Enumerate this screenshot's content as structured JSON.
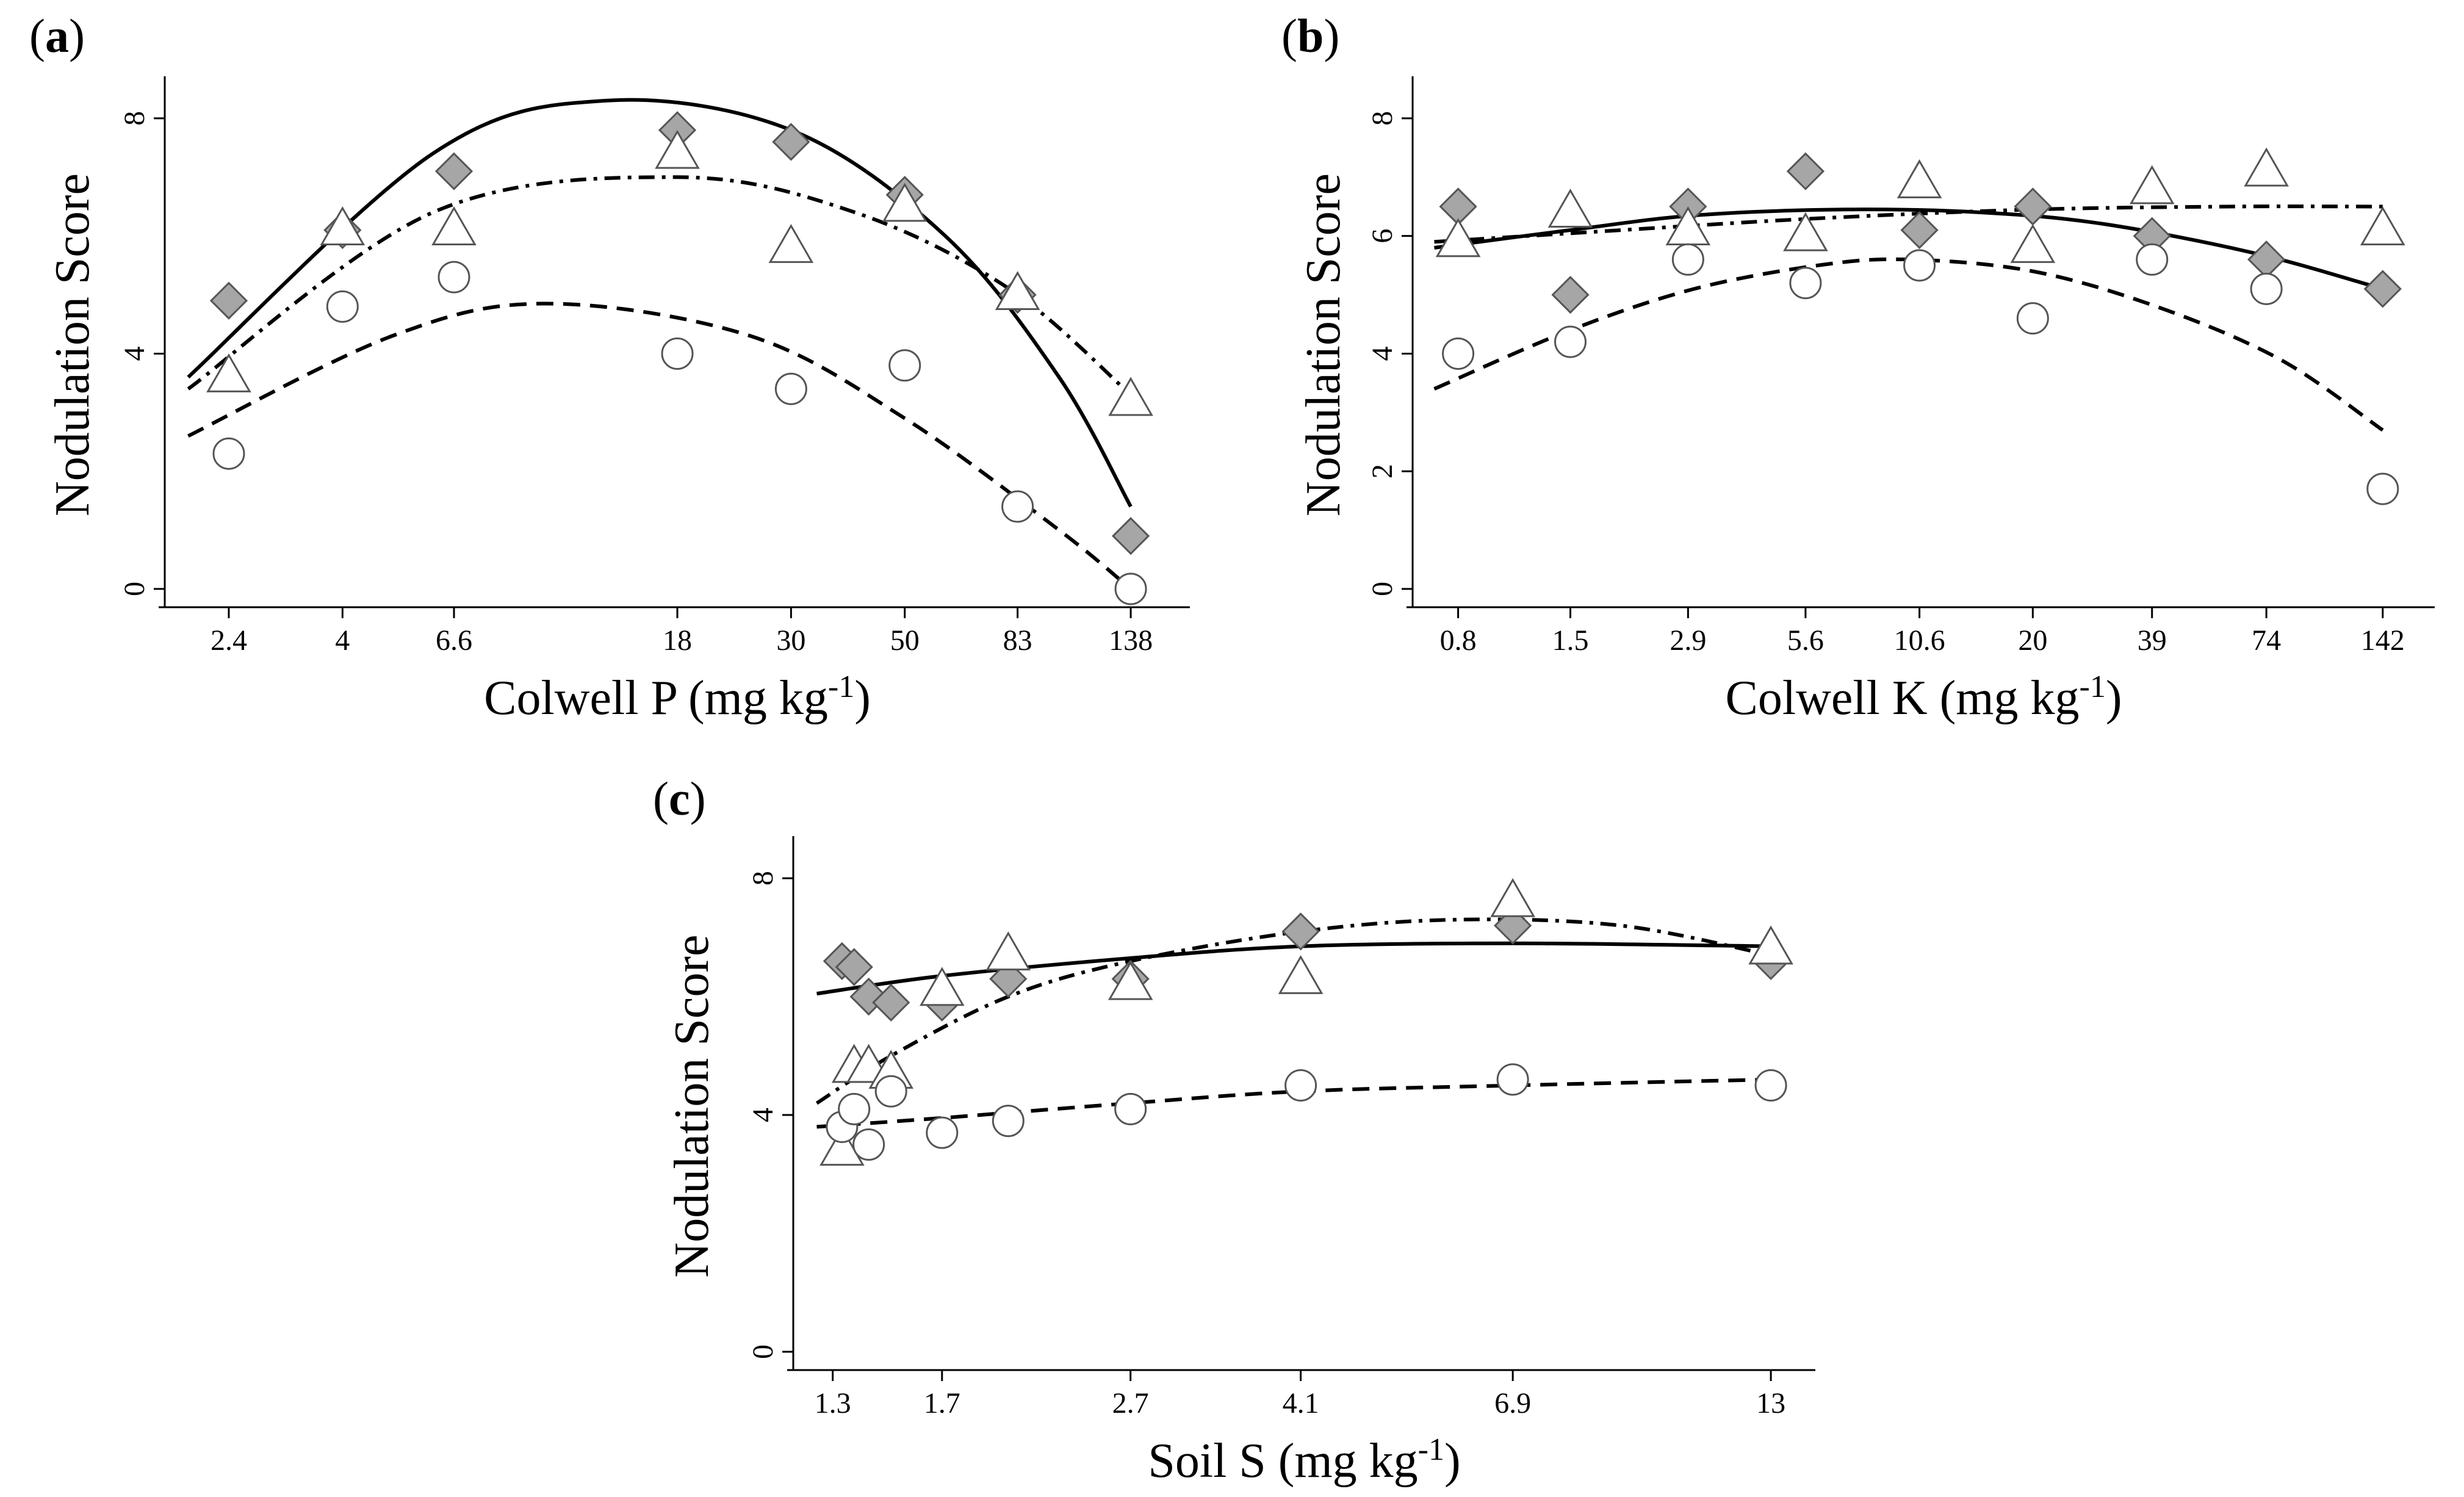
{
  "figure": {
    "panels": [
      "a",
      "b",
      "c"
    ]
  },
  "chart_data": [
    {
      "panel_label": "a",
      "type": "scatter",
      "xlabel": "Colwell P (mg kg",
      "xlabel_sup": "-1",
      "xlabel_end": ")",
      "ylabel": "Nodulation Score",
      "x_scale": "log",
      "x_ticks": [
        "2.4",
        "4",
        "6.6",
        "18",
        "30",
        "50",
        "83",
        "138"
      ],
      "y_ticks": [
        "0",
        "4",
        "8"
      ],
      "ylim": [
        0,
        8.3
      ],
      "series": [
        {
          "name": "diamond",
          "marker": "diamond",
          "fill": "#a6a6a6",
          "line": "solid",
          "x": [
            2.4,
            4,
            6.6,
            18,
            30,
            50,
            83,
            138
          ],
          "y": [
            4.9,
            6.1,
            7.1,
            7.8,
            7.6,
            6.7,
            5.0,
            0.9
          ],
          "fit": {
            "x": [
              2.0,
              6.0,
              13.0,
              30.0,
              60.0,
              100.0,
              138.0
            ],
            "y": [
              3.6,
              7.4,
              8.3,
              7.8,
              6.0,
              3.6,
              1.4
            ]
          }
        },
        {
          "name": "triangle",
          "marker": "triangle",
          "fill": "#ffffff",
          "line": "dashdot",
          "x": [
            2.4,
            4,
            6.6,
            18,
            30,
            50,
            83,
            138
          ],
          "y": [
            3.6,
            6.1,
            6.1,
            7.4,
            5.8,
            6.5,
            5.0,
            3.2
          ],
          "fit": {
            "x": [
              2.0,
              6.0,
              18.0,
              40.0,
              80.0,
              138.0
            ],
            "y": [
              3.4,
              6.4,
              7.0,
              6.4,
              5.1,
              3.3
            ]
          }
        },
        {
          "name": "circle",
          "marker": "circle",
          "fill": "#ffffff",
          "line": "dashed",
          "x": [
            2.4,
            4,
            6.6,
            18,
            30,
            50,
            83,
            138
          ],
          "y": [
            2.3,
            4.8,
            5.3,
            4.0,
            3.4,
            3.8,
            1.4,
            0.0
          ],
          "fit": {
            "x": [
              2.0,
              5.0,
              10.0,
              25.0,
              50.0,
              100.0,
              138.0
            ],
            "y": [
              2.6,
              4.3,
              4.85,
              4.3,
              2.9,
              1.0,
              0.0
            ]
          }
        }
      ]
    },
    {
      "panel_label": "b",
      "type": "scatter",
      "xlabel": "Colwell K (mg kg",
      "xlabel_sup": "-1",
      "xlabel_end": ")",
      "ylabel": "Nodulation Score",
      "x_scale": "log",
      "x_ticks": [
        "0.8",
        "1.5",
        "2.9",
        "5.6",
        "10.6",
        "20",
        "39",
        "74",
        "142"
      ],
      "y_ticks": [
        "0",
        "2",
        "4",
        "6",
        "8"
      ],
      "ylim": [
        0,
        8.3
      ],
      "series": [
        {
          "name": "diamond",
          "marker": "diamond",
          "fill": "#a6a6a6",
          "line": "solid",
          "x": [
            0.8,
            1.5,
            2.9,
            5.6,
            10.6,
            20,
            39,
            74,
            142
          ],
          "y": [
            6.5,
            5.0,
            6.5,
            7.1,
            6.1,
            6.5,
            6.0,
            5.6,
            5.1
          ],
          "fit": {
            "x": [
              0.7,
              1.5,
              3.0,
              7.0,
              15.0,
              30.0,
              70.0,
              142.0
            ],
            "y": [
              5.8,
              6.1,
              6.35,
              6.45,
              6.4,
              6.2,
              5.7,
              5.1
            ]
          }
        },
        {
          "name": "triangle",
          "marker": "triangle",
          "fill": "#ffffff",
          "line": "dashdot",
          "x": [
            0.8,
            1.5,
            2.9,
            5.6,
            10.6,
            20,
            39,
            74,
            142
          ],
          "y": [
            5.9,
            6.4,
            6.1,
            6.0,
            6.9,
            5.8,
            6.8,
            7.1,
            6.1
          ],
          "fit": {
            "x": [
              0.7,
              2.0,
              6.0,
              20.0,
              60.0,
              142.0
            ],
            "y": [
              5.9,
              6.1,
              6.3,
              6.45,
              6.5,
              6.5
            ]
          }
        },
        {
          "name": "circle",
          "marker": "circle",
          "fill": "#ffffff",
          "line": "dashed",
          "x": [
            0.8,
            1.5,
            2.9,
            5.6,
            10.6,
            20,
            39,
            74,
            142
          ],
          "y": [
            4.0,
            4.2,
            5.6,
            5.2,
            5.5,
            4.6,
            5.6,
            5.1,
            1.7
          ],
          "fit": {
            "x": [
              0.7,
              1.5,
              3.0,
              6.0,
              10.0,
              20.0,
              40.0,
              80.0,
              142.0
            ],
            "y": [
              3.4,
              4.4,
              5.1,
              5.5,
              5.6,
              5.4,
              4.8,
              3.9,
              2.7
            ]
          }
        }
      ]
    },
    {
      "panel_label": "c",
      "type": "scatter",
      "xlabel": "Soil S (mg kg",
      "xlabel_sup": "-1",
      "xlabel_end": ")",
      "ylabel": "Nodulation Score",
      "x_scale": "log",
      "x_ticks": [
        "1.3",
        "1.7",
        "2.7",
        "4.1",
        "6.9",
        "13"
      ],
      "y_ticks": [
        "0",
        "4",
        "8"
      ],
      "ylim": [
        0,
        8.3
      ],
      "series": [
        {
          "name": "diamond",
          "marker": "diamond",
          "fill": "#a6a6a6",
          "line": "solid",
          "x": [
            1.33,
            1.37,
            1.42,
            1.5,
            1.7,
            2.0,
            2.7,
            4.1,
            6.9,
            13
          ],
          "y": [
            6.6,
            6.5,
            6.0,
            5.9,
            5.9,
            6.3,
            6.3,
            7.1,
            7.2,
            6.6
          ],
          "fit": {
            "x": [
              1.25,
              1.7,
              2.7,
              4.1,
              6.9,
              13.0
            ],
            "y": [
              6.05,
              6.35,
              6.65,
              6.85,
              6.9,
              6.85
            ]
          }
        },
        {
          "name": "triangle",
          "marker": "triangle",
          "fill": "#ffffff",
          "line": "dashdot",
          "x": [
            1.33,
            1.37,
            1.42,
            1.5,
            1.7,
            2.0,
            2.7,
            4.1,
            6.9,
            13
          ],
          "y": [
            3.4,
            4.8,
            4.8,
            4.7,
            6.1,
            6.7,
            6.2,
            6.3,
            7.6,
            6.8
          ],
          "fit": {
            "x": [
              1.25,
              1.5,
              2.0,
              2.7,
              4.1,
              6.0,
              9.0,
              13.0
            ],
            "y": [
              4.2,
              5.0,
              6.0,
              6.6,
              7.1,
              7.3,
              7.2,
              6.7
            ]
          }
        },
        {
          "name": "circle",
          "marker": "circle",
          "fill": "#ffffff",
          "line": "dashed",
          "x": [
            1.33,
            1.37,
            1.42,
            1.5,
            1.7,
            2.0,
            2.7,
            4.1,
            6.9,
            13
          ],
          "y": [
            3.8,
            4.1,
            3.5,
            4.4,
            3.7,
            3.9,
            4.1,
            4.5,
            4.6,
            4.5
          ],
          "fit": {
            "x": [
              1.25,
              1.7,
              2.7,
              4.1,
              6.9,
              13.0
            ],
            "y": [
              3.8,
              3.95,
              4.2,
              4.4,
              4.5,
              4.6
            ]
          }
        }
      ]
    }
  ]
}
